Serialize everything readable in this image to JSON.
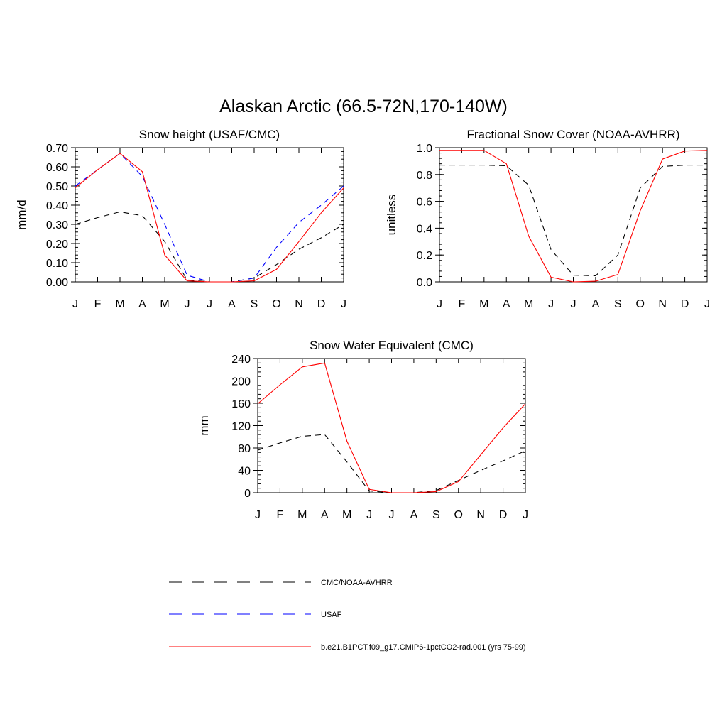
{
  "figure_title": "Alaskan Arctic (66.5-72N,170-140W)",
  "legend": [
    {
      "label": "CMC/NOAA-AVHRR",
      "color": "#000000",
      "style": "dashed"
    },
    {
      "label": "USAF",
      "color": "#0000ff",
      "style": "dashed"
    },
    {
      "label": "b.e21.B1PCT.f09_g17.CMIP6-1pctCO2-rad.001 (yrs 75-99)",
      "color": "#ff0000",
      "style": "solid"
    }
  ],
  "chart_data": [
    {
      "type": "line",
      "title": "Snow height (USAF/CMC)",
      "xlabel": "",
      "ylabel": "mm/d",
      "categories": [
        "J",
        "F",
        "M",
        "A",
        "M",
        "J",
        "J",
        "A",
        "S",
        "O",
        "N",
        "D",
        "J"
      ],
      "ylim": [
        0,
        0.7
      ],
      "yticks": [
        0,
        0.1,
        0.2,
        0.3,
        0.4,
        0.5,
        0.6,
        0.7
      ],
      "ytick_labels": [
        "0.00",
        "0.10",
        "0.20",
        "0.30",
        "0.40",
        "0.50",
        "0.60",
        "0.70"
      ],
      "grid": false,
      "series": [
        {
          "name": "CMC/NOAA-AVHRR",
          "color": "#000000",
          "dash": true,
          "values": [
            0.3,
            0.335,
            0.365,
            0.345,
            0.21,
            0.01,
            0.0,
            0.0,
            0.02,
            0.09,
            0.17,
            0.23,
            0.3
          ]
        },
        {
          "name": "USAF",
          "color": "#0000ff",
          "dash": true,
          "values": [
            0.5,
            0.585,
            0.67,
            0.55,
            0.3,
            0.035,
            0.0,
            0.0,
            0.02,
            0.18,
            0.31,
            0.4,
            0.5
          ]
        },
        {
          "name": "b.e21.B1PCT.f09_g17.CMIP6-1pctCO2-rad.001 (yrs 75-99)",
          "color": "#ff0000",
          "dash": false,
          "values": [
            0.49,
            0.585,
            0.67,
            0.575,
            0.14,
            0.005,
            0.0,
            0.0,
            0.005,
            0.065,
            0.21,
            0.36,
            0.49
          ]
        }
      ]
    },
    {
      "type": "line",
      "title": "Fractional Snow Cover (NOAA-AVHRR)",
      "xlabel": "",
      "ylabel": "unitless",
      "categories": [
        "J",
        "F",
        "M",
        "A",
        "M",
        "J",
        "J",
        "A",
        "S",
        "O",
        "N",
        "D",
        "J"
      ],
      "ylim": [
        0,
        1.0
      ],
      "yticks": [
        0,
        0.2,
        0.4,
        0.6,
        0.8,
        1.0
      ],
      "ytick_labels": [
        "0.0",
        "0.2",
        "0.4",
        "0.6",
        "0.8",
        "1.0"
      ],
      "grid": false,
      "series": [
        {
          "name": "CMC/NOAA-AVHRR",
          "color": "#000000",
          "dash": true,
          "values": [
            0.87,
            0.87,
            0.87,
            0.865,
            0.72,
            0.24,
            0.05,
            0.045,
            0.2,
            0.7,
            0.86,
            0.87,
            0.87
          ]
        },
        {
          "name": "b.e21.B1PCT.f09_g17.CMIP6-1pctCO2-rad.001 (yrs 75-99)",
          "color": "#ff0000",
          "dash": false,
          "values": [
            0.98,
            0.98,
            0.98,
            0.88,
            0.34,
            0.035,
            0.0,
            0.005,
            0.055,
            0.53,
            0.915,
            0.975,
            0.98
          ]
        }
      ]
    },
    {
      "type": "line",
      "title": "Snow Water Equivalent (CMC)",
      "xlabel": "",
      "ylabel": "mm",
      "categories": [
        "J",
        "F",
        "M",
        "A",
        "M",
        "J",
        "J",
        "A",
        "S",
        "O",
        "N",
        "D",
        "J"
      ],
      "ylim": [
        0,
        240
      ],
      "yticks": [
        0,
        40,
        80,
        120,
        160,
        200,
        240
      ],
      "ytick_labels": [
        "0",
        "40",
        "80",
        "120",
        "160",
        "200",
        "240"
      ],
      "grid": false,
      "series": [
        {
          "name": "CMC/NOAA-AVHRR",
          "color": "#000000",
          "dash": true,
          "values": [
            76,
            89,
            101,
            104,
            55,
            3,
            0,
            0,
            4,
            22,
            40,
            57,
            75
          ]
        },
        {
          "name": "b.e21.B1PCT.f09_g17.CMIP6-1pctCO2-rad.001 (yrs 75-99)",
          "color": "#ff0000",
          "dash": false,
          "values": [
            159,
            193,
            225,
            232,
            92,
            6,
            0,
            0,
            2,
            20,
            68,
            116,
            159
          ]
        }
      ]
    }
  ]
}
